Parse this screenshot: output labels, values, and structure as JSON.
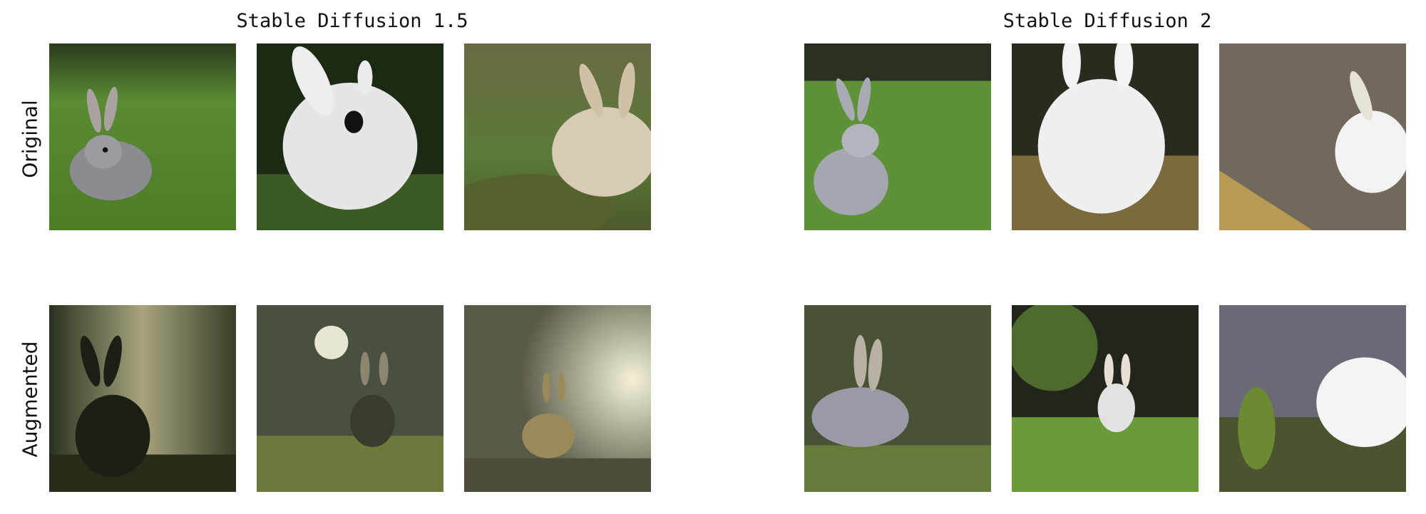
{
  "panels": [
    {
      "title": "Stable Diffusion 1.5"
    },
    {
      "title": "Stable Diffusion 2"
    }
  ],
  "rows": [
    {
      "label": "Original"
    },
    {
      "label": "Augmented"
    }
  ],
  "images": {
    "sd15_original": [
      {
        "subject": "rabbit",
        "description_icon": "gray-rabbit-on-grass"
      },
      {
        "subject": "rabbit",
        "description_icon": "white-rabbit-closeup"
      },
      {
        "subject": "rabbit",
        "description_icon": "tan-rabbit-on-rock"
      }
    ],
    "sd15_augmented": [
      {
        "subject": "rabbit",
        "description_icon": "silhouette-rabbit-forest"
      },
      {
        "subject": "rabbit",
        "description_icon": "rabbit-moonlight"
      },
      {
        "subject": "rabbit",
        "description_icon": "rabbit-glowing-path"
      }
    ],
    "sd2_original": [
      {
        "subject": "rabbit",
        "description_icon": "gray-rabbit-lawn"
      },
      {
        "subject": "rabbit",
        "description_icon": "white-rabbit-floor"
      },
      {
        "subject": "rabbit",
        "description_icon": "white-rabbit-gravel"
      }
    ],
    "sd2_augmented": [
      {
        "subject": "rabbit",
        "description_icon": "rabbit-lying-grass"
      },
      {
        "subject": "rabbit",
        "description_icon": "rabbit-by-bush"
      },
      {
        "subject": "rabbit",
        "description_icon": "white-rabbit-plants"
      }
    ]
  }
}
